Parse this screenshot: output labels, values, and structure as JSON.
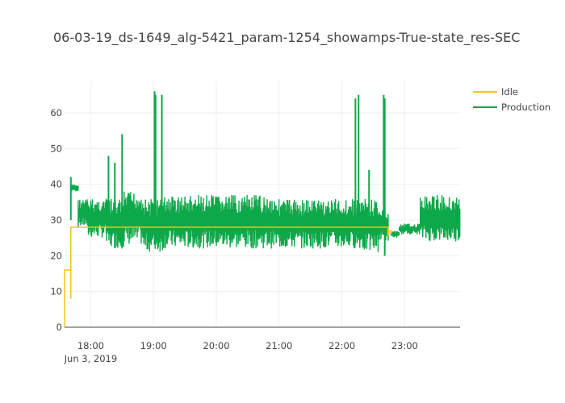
{
  "chart_data": {
    "type": "line",
    "title": "06-03-19_ds-1649_alg-5421_param-1254_showamps-True-state_res-SEC",
    "xlabel": "",
    "ylabel": "",
    "x_ticks": [
      "18:00",
      "19:00",
      "20:00",
      "21:00",
      "22:00",
      "23:00"
    ],
    "x_sublabel": "Jun 3, 2019",
    "xlim": [
      "17:35",
      "23:53"
    ],
    "y_ticks": [
      0,
      10,
      20,
      30,
      40,
      50,
      60
    ],
    "ylim": [
      0,
      69
    ],
    "grid": true,
    "legend_position": "top-right",
    "series": [
      {
        "name": "Idle",
        "color": "#f5c518",
        "x": [
          "17:35",
          "17:35",
          "17:36",
          "17:40",
          "17:41",
          "17:41",
          "22:44",
          "22:45",
          "22:47"
        ],
        "y": [
          0,
          16,
          16,
          16,
          8,
          28,
          26,
          27,
          26
        ]
      },
      {
        "name": "Production",
        "color": "#0da84a",
        "segments": [
          {
            "start": "17:41",
            "end": "17:48",
            "low": 38,
            "high": 40
          },
          {
            "start": "17:48",
            "end": "17:57",
            "low": 28,
            "high": 36
          },
          {
            "start": "17:57",
            "end": "18:15",
            "low": 25,
            "high": 36
          },
          {
            "start": "18:15",
            "end": "18:32",
            "low": 22,
            "high": 36
          },
          {
            "start": "18:32",
            "end": "18:50",
            "low": 23,
            "high": 38
          },
          {
            "start": "18:50",
            "end": "19:10",
            "low": 21,
            "high": 36
          },
          {
            "start": "19:10",
            "end": "21:00",
            "low": 22,
            "high": 37
          },
          {
            "start": "21:00",
            "end": "22:20",
            "low": 22,
            "high": 36
          },
          {
            "start": "22:20",
            "end": "22:35",
            "low": 21,
            "high": 36
          },
          {
            "start": "22:35",
            "end": "22:45",
            "low": 24,
            "high": 33
          },
          {
            "start": "22:47",
            "end": "22:55",
            "low": 25,
            "high": 27
          },
          {
            "start": "22:55",
            "end": "23:15",
            "low": 26,
            "high": 29
          },
          {
            "start": "23:15",
            "end": "23:53",
            "low": 24,
            "high": 37
          }
        ],
        "spikes": [
          {
            "x": "17:41",
            "y": 42
          },
          {
            "x": "18:17",
            "y": 48
          },
          {
            "x": "18:23",
            "y": 46
          },
          {
            "x": "18:30",
            "y": 54
          },
          {
            "x": "19:01",
            "y": 66
          },
          {
            "x": "19:02",
            "y": 65
          },
          {
            "x": "19:08",
            "y": 65
          },
          {
            "x": "22:13",
            "y": 64
          },
          {
            "x": "22:16",
            "y": 65
          },
          {
            "x": "22:26",
            "y": 44
          },
          {
            "x": "22:40",
            "y": 65
          },
          {
            "x": "22:41",
            "y": 64
          },
          {
            "x": "22:41",
            "y": 20
          }
        ]
      }
    ]
  }
}
